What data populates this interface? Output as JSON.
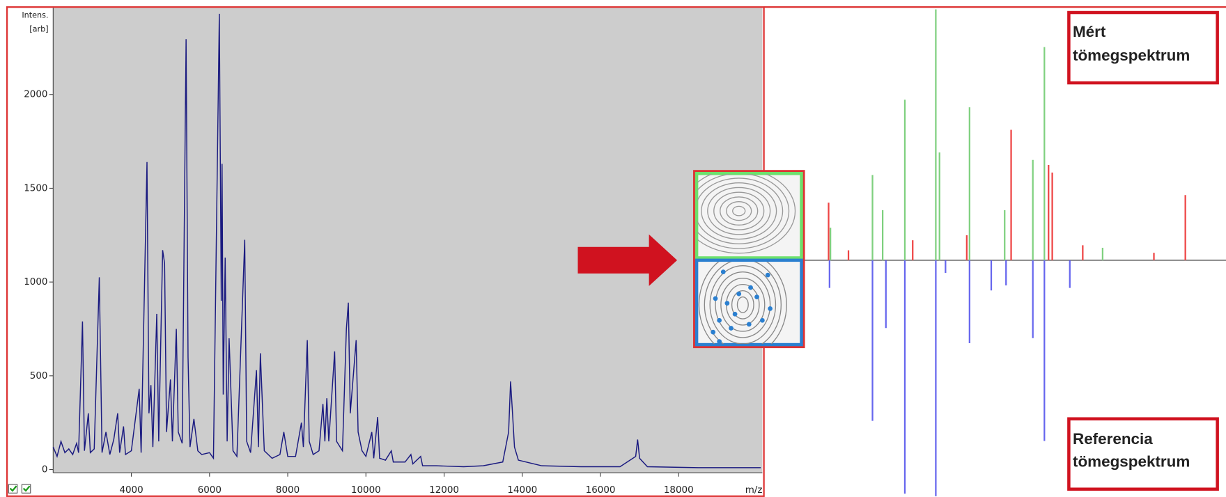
{
  "chart_data": [
    {
      "type": "line",
      "y_label": [
        "Intens.",
        "[arb]"
      ],
      "x_label": "m/z",
      "xlim": [
        2000,
        20140
      ],
      "ylim": [
        -17,
        2462
      ],
      "xticks": [
        4000,
        6000,
        8000,
        10000,
        12000,
        14000,
        16000,
        18000
      ],
      "yticks": [
        0,
        500,
        1000,
        1500,
        2000
      ],
      "color": "#1a1a80",
      "x": [
        2000,
        2100,
        2200,
        2300,
        2400,
        2500,
        2600,
        2650,
        2750,
        2800,
        2900,
        2950,
        3050,
        3180,
        3250,
        3350,
        3450,
        3550,
        3650,
        3700,
        3800,
        3850,
        4000,
        4200,
        4250,
        4400,
        4450,
        4500,
        4550,
        4650,
        4700,
        4800,
        4850,
        4900,
        5000,
        5050,
        5150,
        5200,
        5300,
        5400,
        5450,
        5500,
        5600,
        5700,
        5800,
        6000,
        6100,
        6250,
        6300,
        6320,
        6350,
        6400,
        6450,
        6500,
        6600,
        6700,
        6900,
        6950,
        7050,
        7200,
        7250,
        7300,
        7400,
        7600,
        7800,
        7900,
        8000,
        8200,
        8350,
        8400,
        8500,
        8550,
        8650,
        8800,
        8900,
        8950,
        9000,
        9050,
        9200,
        9250,
        9400,
        9500,
        9550,
        9600,
        9750,
        9800,
        9900,
        10000,
        10150,
        10200,
        10300,
        10350,
        10500,
        10650,
        10700,
        11000,
        11150,
        11200,
        11400,
        11450,
        11800,
        12500,
        13000,
        13500,
        13650,
        13700,
        13750,
        13800,
        13900,
        14500,
        15500,
        16500,
        16900,
        16950,
        17000,
        17200,
        18500,
        20100
      ],
      "values": [
        120,
        70,
        150,
        90,
        110,
        80,
        140,
        90,
        790,
        100,
        300,
        90,
        110,
        1025,
        90,
        200,
        80,
        160,
        300,
        90,
        230,
        80,
        100,
        430,
        90,
        1640,
        300,
        450,
        120,
        830,
        150,
        1170,
        1100,
        200,
        480,
        150,
        750,
        200,
        140,
        2295,
        600,
        120,
        270,
        100,
        80,
        90,
        60,
        2430,
        900,
        1630,
        400,
        1130,
        150,
        700,
        100,
        70,
        1225,
        150,
        90,
        530,
        120,
        620,
        100,
        60,
        80,
        200,
        70,
        70,
        250,
        120,
        690,
        150,
        80,
        100,
        350,
        150,
        380,
        150,
        630,
        150,
        100,
        750,
        890,
        300,
        690,
        200,
        100,
        70,
        200,
        60,
        280,
        60,
        50,
        100,
        40,
        40,
        80,
        30,
        70,
        20,
        20,
        15,
        20,
        40,
        200,
        470,
        300,
        120,
        50,
        20,
        15,
        15,
        70,
        160,
        60,
        15,
        10,
        10
      ]
    },
    {
      "type": "butterfly",
      "xlim": [
        0,
        100
      ],
      "ylim": [
        -94,
        100
      ],
      "top_label": [
        "Mért",
        "tömegspektrum"
      ],
      "bottom_label": [
        "Referencia",
        "tömegspektrum"
      ],
      "series": [
        {
          "color": "#7fd07f",
          "x": [
            37.2,
            30.5,
            44.5,
            60.7,
            23.5,
            38.0,
            58.2,
            14.4,
            25.7,
            52.1,
            73.3
          ],
          "values": [
            100,
            64,
            61,
            85,
            34,
            43,
            40,
            13,
            20,
            20,
            5
          ]
        },
        {
          "color": "#ee4444",
          "x": [
            53.5,
            91.2,
            14.0,
            61.6,
            62.4,
            69.0,
            84.4,
            32.2,
            43.9,
            18.3
          ],
          "values": [
            52,
            26,
            23,
            38,
            35,
            6,
            3,
            8,
            10,
            4
          ]
        },
        {
          "color": "#6666ee",
          "x": [
            37.2,
            30.5,
            23.5,
            60.7,
            44.5,
            58.2,
            26.4,
            49.2,
            66.2,
            14.2,
            52.4,
            39.3
          ],
          "values": [
            -94,
            -93,
            -64,
            -72,
            -33,
            -31,
            -27,
            -12,
            -11,
            -11,
            -10,
            -5
          ]
        }
      ]
    }
  ]
}
